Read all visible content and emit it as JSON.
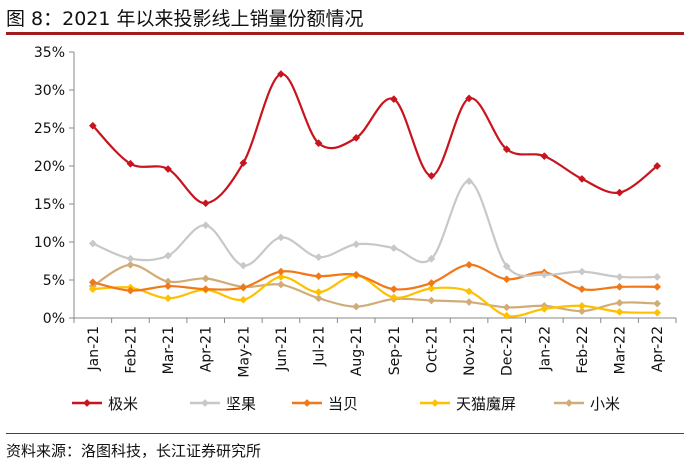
{
  "header": {
    "title": "图 8：2021 年以来投影线上销量份额情况"
  },
  "footer": {
    "source": "资料来源：洛图科技，长江证券研究所"
  },
  "chart_data": {
    "type": "line",
    "categories": [
      "Jan-21",
      "Feb-21",
      "Mar-21",
      "Apr-21",
      "May-21",
      "Jun-21",
      "Jul-21",
      "Aug-21",
      "Sep-21",
      "Oct-21",
      "Nov-21",
      "Dec-21",
      "Jan-22",
      "Feb-22",
      "Mar-22",
      "Apr-22"
    ],
    "y_ticks": [
      "0%",
      "5%",
      "10%",
      "15%",
      "20%",
      "25%",
      "30%",
      "35%"
    ],
    "ylim": [
      0,
      35
    ],
    "y_unit": "%",
    "smooth": true,
    "grid": false,
    "legend_position": "bottom",
    "series": [
      {
        "name": "极米",
        "color": "#c8141e",
        "values": [
          25.3,
          20.3,
          19.6,
          15.1,
          20.4,
          32.1,
          23.0,
          23.7,
          28.8,
          18.7,
          28.9,
          22.2,
          21.3,
          18.3,
          16.5,
          20.0
        ]
      },
      {
        "name": "坚果",
        "color": "#c8c8c8",
        "values": [
          9.8,
          7.8,
          8.2,
          12.2,
          6.9,
          10.6,
          8.0,
          9.7,
          9.2,
          7.8,
          18.0,
          6.8,
          5.7,
          6.1,
          5.4,
          5.4
        ]
      },
      {
        "name": "当贝",
        "color": "#f07818",
        "values": [
          4.7,
          3.6,
          4.2,
          3.8,
          4.0,
          6.1,
          5.5,
          5.7,
          3.8,
          4.6,
          7.0,
          5.1,
          6.0,
          3.8,
          4.1,
          4.1
        ]
      },
      {
        "name": "天猫魔屏",
        "color": "#ffc000",
        "values": [
          3.8,
          4.0,
          2.6,
          3.7,
          2.4,
          5.4,
          3.4,
          5.6,
          2.7,
          3.9,
          3.5,
          0.3,
          1.2,
          1.6,
          0.8,
          0.7
        ]
      },
      {
        "name": "小米",
        "color": "#d2ac78",
        "values": [
          4.2,
          7.0,
          4.8,
          5.2,
          4.1,
          4.4,
          2.6,
          1.5,
          2.5,
          2.3,
          2.1,
          1.4,
          1.6,
          0.9,
          2.0,
          1.9
        ]
      }
    ]
  }
}
